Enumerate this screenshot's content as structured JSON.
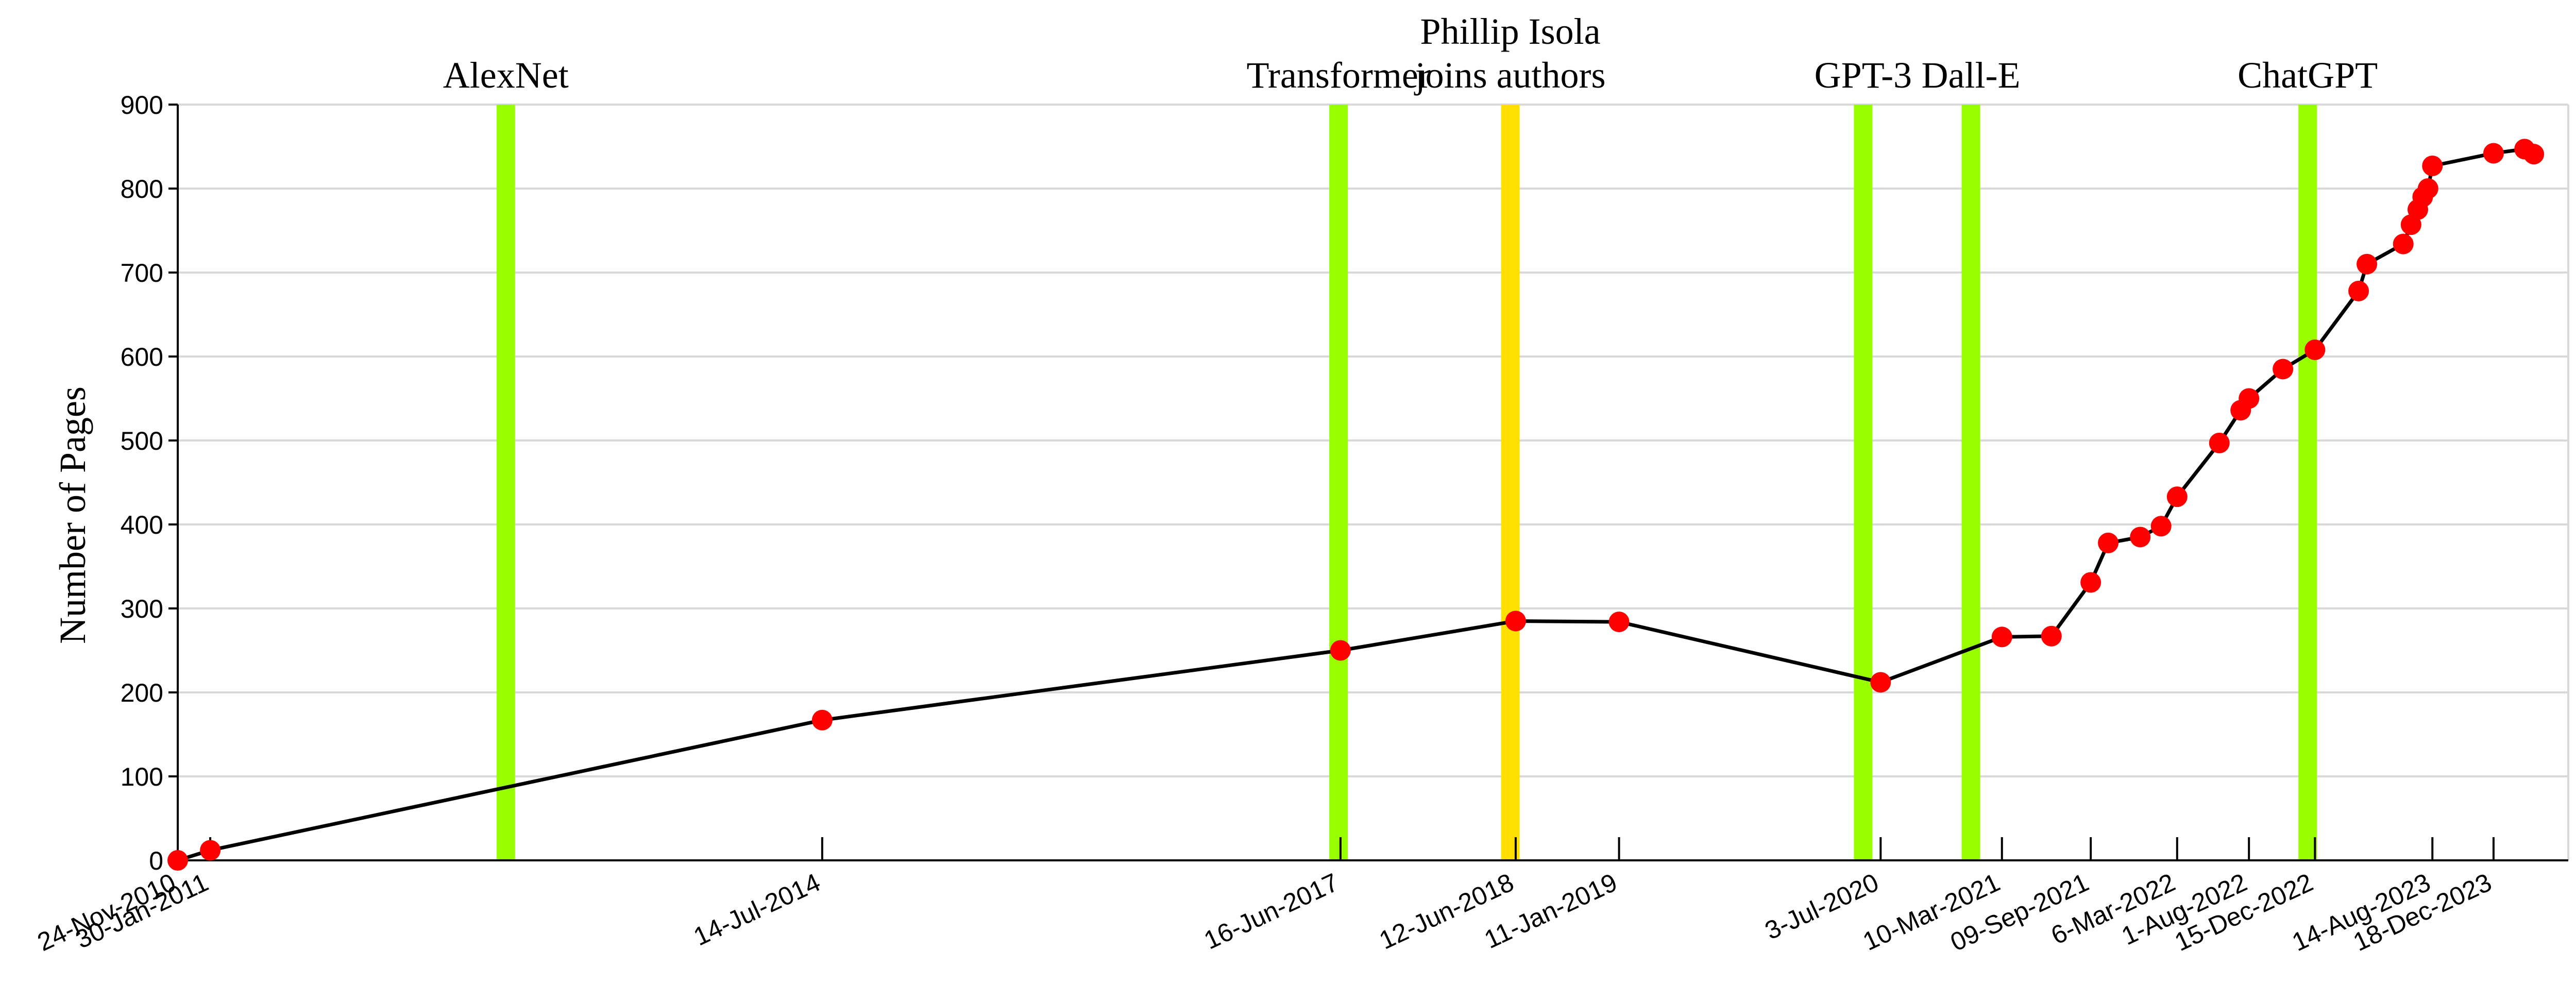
{
  "chart_data": {
    "type": "line",
    "title": "",
    "xlabel": "",
    "ylabel": "Number of Pages",
    "ylim": [
      0,
      900
    ],
    "yticks": [
      0,
      100,
      200,
      300,
      400,
      500,
      600,
      700,
      800,
      900
    ],
    "xlim": [
      "2010-11-24",
      "2024-05-20"
    ],
    "grid": "horizontal",
    "legend": "none",
    "colors": {
      "line": "#000000",
      "marker": "#ff0000",
      "event": "#99ff00",
      "highlight": "#ffe000",
      "grid": "#d9d9d9"
    },
    "xtick_labels": [
      {
        "date": "2010-11-24",
        "label": "24-Nov-2010"
      },
      {
        "date": "2011-01-30",
        "label": "30-Jan-2011"
      },
      {
        "date": "2014-07-14",
        "label": "14-Jul-2014"
      },
      {
        "date": "2017-06-16",
        "label": "16-Jun-2017"
      },
      {
        "date": "2018-06-12",
        "label": "12-Jun-2018"
      },
      {
        "date": "2019-01-11",
        "label": "11-Jan-2019"
      },
      {
        "date": "2020-07-03",
        "label": "3-Jul-2020"
      },
      {
        "date": "2021-03-10",
        "label": "10-Mar-2021"
      },
      {
        "date": "2021-09-09",
        "label": "09-Sep-2021"
      },
      {
        "date": "2022-03-06",
        "label": "6-Mar-2022"
      },
      {
        "date": "2022-08-01",
        "label": "1-Aug-2022"
      },
      {
        "date": "2022-12-15",
        "label": "15-Dec-2022"
      },
      {
        "date": "2023-08-14",
        "label": "14-Aug-2023"
      },
      {
        "date": "2023-12-18",
        "label": "18-Dec-2023"
      }
    ],
    "events": [
      {
        "date": "2012-09-30",
        "lines": [
          "AlexNet"
        ],
        "style": "event"
      },
      {
        "date": "2017-06-12",
        "lines": [
          "Transformer"
        ],
        "style": "event"
      },
      {
        "date": "2018-06-01",
        "lines": [
          "Phillip Isola",
          "joins authors"
        ],
        "style": "highlight"
      },
      {
        "date": "2020-05-28",
        "lines": [
          "GPT-3"
        ],
        "style": "event"
      },
      {
        "date": "2021-01-05",
        "lines": [
          "Dall-E"
        ],
        "style": "event"
      },
      {
        "date": "2022-11-30",
        "lines": [
          "ChatGPT"
        ],
        "style": "event"
      }
    ],
    "series": [
      {
        "points": [
          {
            "x": "2010-11-24",
            "y": 0
          },
          {
            "x": "2011-01-30",
            "y": 12
          },
          {
            "x": "2014-07-14",
            "y": 167
          },
          {
            "x": "2017-06-16",
            "y": 250
          },
          {
            "x": "2018-06-12",
            "y": 285
          },
          {
            "x": "2019-01-11",
            "y": 284
          },
          {
            "x": "2020-07-03",
            "y": 212
          },
          {
            "x": "2021-03-10",
            "y": 266
          },
          {
            "x": "2021-06-20",
            "y": 267
          },
          {
            "x": "2021-09-09",
            "y": 331
          },
          {
            "x": "2021-10-15",
            "y": 378
          },
          {
            "x": "2021-12-20",
            "y": 385
          },
          {
            "x": "2022-02-01",
            "y": 398
          },
          {
            "x": "2022-03-06",
            "y": 433
          },
          {
            "x": "2022-06-01",
            "y": 497
          },
          {
            "x": "2022-07-15",
            "y": 536
          },
          {
            "x": "2022-08-01",
            "y": 550
          },
          {
            "x": "2022-10-10",
            "y": 585
          },
          {
            "x": "2022-12-15",
            "y": 608
          },
          {
            "x": "2023-03-15",
            "y": 678
          },
          {
            "x": "2023-04-01",
            "y": 710
          },
          {
            "x": "2023-06-15",
            "y": 734
          },
          {
            "x": "2023-07-01",
            "y": 757
          },
          {
            "x": "2023-07-15",
            "y": 775
          },
          {
            "x": "2023-07-25",
            "y": 790
          },
          {
            "x": "2023-08-05",
            "y": 800
          },
          {
            "x": "2023-08-14",
            "y": 827
          },
          {
            "x": "2023-12-18",
            "y": 842
          },
          {
            "x": "2024-02-20",
            "y": 847
          },
          {
            "x": "2024-03-10",
            "y": 841
          }
        ]
      }
    ]
  }
}
